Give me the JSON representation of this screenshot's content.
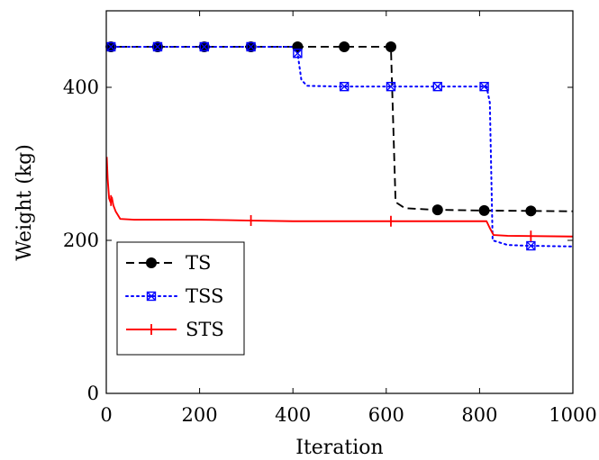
{
  "chart_data": {
    "type": "line",
    "title": "",
    "xlabel": "Iteration",
    "ylabel": "Weight (kg)",
    "xlim": [
      0,
      1000
    ],
    "ylim": [
      0,
      500
    ],
    "x_ticks": [
      0,
      200,
      400,
      600,
      800,
      1000
    ],
    "y_ticks": [
      0,
      200,
      400
    ],
    "grid": false,
    "legend_position": "bottom-left",
    "series": [
      {
        "name": "TS",
        "color": "#000000",
        "line_style": "dashed",
        "marker": "filled-circle",
        "x": [
          0,
          610,
          620,
          640,
          700,
          800,
          1000
        ],
        "y": [
          453,
          453,
          250,
          242,
          240,
          239,
          238
        ],
        "marker_x": [
          10,
          110,
          210,
          310,
          410,
          510,
          610,
          710,
          810,
          910
        ]
      },
      {
        "name": "TSS",
        "color": "#0000ff",
        "line_style": "dotted",
        "marker": "cross-square",
        "x": [
          0,
          408,
          418,
          430,
          500,
          815,
          822,
          828,
          860,
          900,
          1000
        ],
        "y": [
          453,
          453,
          410,
          402,
          401,
          401,
          380,
          200,
          194,
          193,
          192
        ],
        "marker_x": [
          10,
          110,
          210,
          310,
          410,
          510,
          610,
          710,
          810,
          910
        ]
      },
      {
        "name": "STS",
        "color": "#ff0000",
        "line_style": "solid",
        "marker": "vertical-bar",
        "x": [
          1,
          3,
          6,
          9,
          12,
          15,
          20,
          30,
          60,
          100,
          200,
          300,
          400,
          500,
          600,
          700,
          815,
          822,
          830,
          860,
          1000
        ],
        "y": [
          309,
          280,
          255,
          250,
          256,
          246,
          238,
          228,
          227,
          227,
          227,
          226,
          225,
          225,
          225,
          225,
          225,
          216,
          207,
          206,
          205
        ],
        "marker_x": [
          10,
          310,
          610,
          910
        ]
      }
    ]
  }
}
